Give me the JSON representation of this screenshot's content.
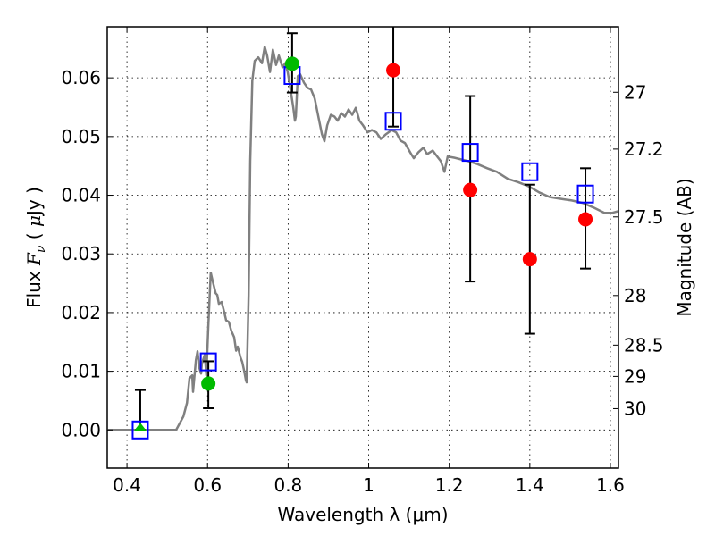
{
  "chart_data": {
    "type": "scatter",
    "title": "",
    "xlabel": "Wavelength  λ (μm)",
    "ylabel_parts": [
      "Flux  ",
      "F",
      "ν",
      "  ( ",
      "μ",
      "Jy )"
    ],
    "ylabel": "Flux  Fν  ( μJy )",
    "y2label": "Magnitude (AB)",
    "xlim": [
      0.351,
      1.62
    ],
    "ylim": [
      -0.0065,
      0.0687
    ],
    "grid": true,
    "xticks": [
      0.4,
      0.6,
      0.8,
      1.0,
      1.2,
      1.4,
      1.6
    ],
    "xtick_labels": [
      "0.4",
      "0.6",
      "0.8",
      "1",
      "1.2",
      "1.4",
      "1.6"
    ],
    "yticks": [
      0.0,
      0.01,
      0.02,
      0.03,
      0.04,
      0.05,
      0.06
    ],
    "ytick_labels": [
      "0.00",
      "0.01",
      "0.02",
      "0.03",
      "0.04",
      "0.05",
      "0.06"
    ],
    "y2_magnitude_zeropoint": 23.9,
    "y2ticks": [
      27,
      27.2,
      27.5,
      28,
      28.5,
      29,
      30
    ],
    "y2tick_labels": [
      "27",
      "27.2",
      "27.5",
      "28",
      "28.5",
      "29",
      "30"
    ],
    "colors": {
      "model": "#808080",
      "detection_optical": "#00bb00",
      "detection_nir": "#ff0000",
      "model_photometry": "#0000ff",
      "errorbar": "#000000"
    },
    "series": [
      {
        "name": "model SED",
        "kind": "line",
        "x": [
          0.353,
          0.522,
          0.54,
          0.549,
          0.555,
          0.562,
          0.564,
          0.571,
          0.575,
          0.58,
          0.584,
          0.586,
          0.593,
          0.597,
          0.602,
          0.608,
          0.613,
          0.62,
          0.624,
          0.628,
          0.635,
          0.642,
          0.646,
          0.653,
          0.659,
          0.666,
          0.671,
          0.675,
          0.682,
          0.686,
          0.691,
          0.695,
          0.697,
          0.702,
          0.706,
          0.711,
          0.717,
          0.726,
          0.735,
          0.742,
          0.748,
          0.755,
          0.762,
          0.77,
          0.777,
          0.786,
          0.793,
          0.799,
          0.806,
          0.813,
          0.817,
          0.819,
          0.824,
          0.83,
          0.839,
          0.848,
          0.857,
          0.866,
          0.875,
          0.884,
          0.89,
          0.897,
          0.906,
          0.915,
          0.923,
          0.932,
          0.941,
          0.95,
          0.959,
          0.968,
          0.977,
          0.986,
          0.997,
          1.008,
          1.019,
          1.03,
          1.043,
          1.057,
          1.068,
          1.079,
          1.09,
          1.103,
          1.112,
          1.123,
          1.136,
          1.145,
          1.159,
          1.17,
          1.179,
          1.188,
          1.196,
          1.212,
          1.23,
          1.247,
          1.27,
          1.294,
          1.318,
          1.345,
          1.372,
          1.398,
          1.423,
          1.449,
          1.476,
          1.504,
          1.531,
          1.558,
          1.585,
          1.605,
          1.62
        ],
        "y": [
          0.0,
          0.0,
          0.0023,
          0.0046,
          0.0088,
          0.0093,
          0.0065,
          0.0119,
          0.0134,
          0.0105,
          0.0096,
          0.0113,
          0.0128,
          0.0093,
          0.0177,
          0.0268,
          0.0253,
          0.0233,
          0.023,
          0.0215,
          0.0218,
          0.0199,
          0.0187,
          0.0184,
          0.0169,
          0.0158,
          0.0135,
          0.0142,
          0.0123,
          0.0116,
          0.01,
          0.0085,
          0.0081,
          0.023,
          0.0458,
          0.0595,
          0.0629,
          0.0635,
          0.0625,
          0.0653,
          0.0638,
          0.061,
          0.0648,
          0.0622,
          0.0638,
          0.0618,
          0.0625,
          0.061,
          0.058,
          0.0549,
          0.0527,
          0.0534,
          0.0603,
          0.0606,
          0.0592,
          0.0583,
          0.058,
          0.0565,
          0.0534,
          0.0504,
          0.0492,
          0.0519,
          0.0537,
          0.0534,
          0.0527,
          0.054,
          0.0534,
          0.0546,
          0.0537,
          0.0549,
          0.0527,
          0.0519,
          0.0507,
          0.0511,
          0.0507,
          0.0496,
          0.0504,
          0.0511,
          0.0507,
          0.0493,
          0.0489,
          0.0473,
          0.0463,
          0.0473,
          0.0481,
          0.047,
          0.0476,
          0.0466,
          0.0458,
          0.044,
          0.0466,
          0.0464,
          0.0461,
          0.0458,
          0.0453,
          0.0446,
          0.044,
          0.0428,
          0.0422,
          0.0415,
          0.0405,
          0.0397,
          0.0394,
          0.0391,
          0.0387,
          0.0379,
          0.037,
          0.037,
          0.0373
        ]
      },
      {
        "name": "model photometry",
        "kind": "square",
        "x": [
          0.433,
          0.602,
          0.81,
          1.061,
          1.252,
          1.4,
          1.538
        ],
        "y": [
          0.0,
          0.0116,
          0.0604,
          0.0526,
          0.0473,
          0.044,
          0.0402
        ]
      },
      {
        "name": "upper limit",
        "kind": "triangle",
        "x": [
          0.433
        ],
        "y": [
          0.0
        ],
        "err_low": [
          0.0
        ],
        "err_high": [
          0.0068
        ]
      },
      {
        "name": "optical detections",
        "kind": "circle-green",
        "x": [
          0.602,
          0.81
        ],
        "y": [
          0.0079,
          0.0624
        ],
        "err_low": [
          0.0037,
          0.0575
        ],
        "err_high": [
          0.0117,
          0.0676
        ]
      },
      {
        "name": "near-IR detections",
        "kind": "circle-red",
        "x": [
          1.061,
          1.252,
          1.4,
          1.538
        ],
        "y": [
          0.0613,
          0.0409,
          0.0291,
          0.0359
        ],
        "err_low": [
          0.0517,
          0.0253,
          0.0164,
          0.0275
        ],
        "err_high": [
          0.072,
          0.0569,
          0.0418,
          0.0446
        ]
      }
    ]
  }
}
